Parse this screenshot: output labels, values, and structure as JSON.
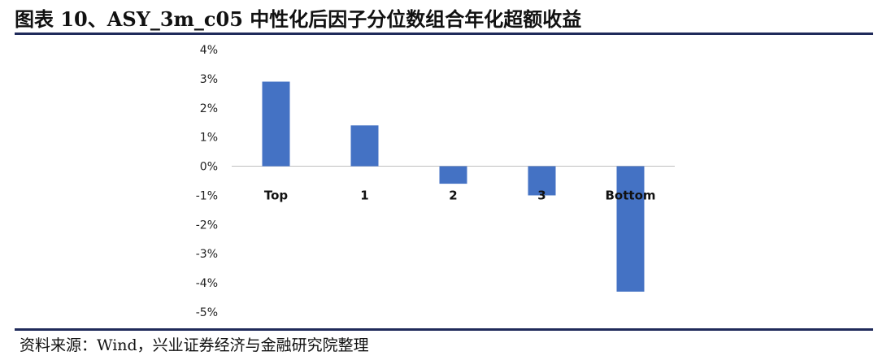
{
  "title": "图表 10、ASY_3m_c05 中性化后因子分位数组合年化超额收益",
  "source": "资料来源：Wind，兴业证券经济与金融研究院整理",
  "chart_data": {
    "type": "bar",
    "categories": [
      "Top",
      "1",
      "2",
      "3",
      "Bottom"
    ],
    "values": [
      2.9,
      1.4,
      -0.6,
      -1.0,
      -4.3
    ],
    "ylim": [
      -5,
      4
    ],
    "yticks": [
      "4%",
      "3%",
      "2%",
      "1%",
      "0%",
      "-1%",
      "-2%",
      "-3%",
      "-4%",
      "-5%"
    ],
    "bar_color": "#4472c4",
    "grid": false,
    "legend": "none"
  }
}
